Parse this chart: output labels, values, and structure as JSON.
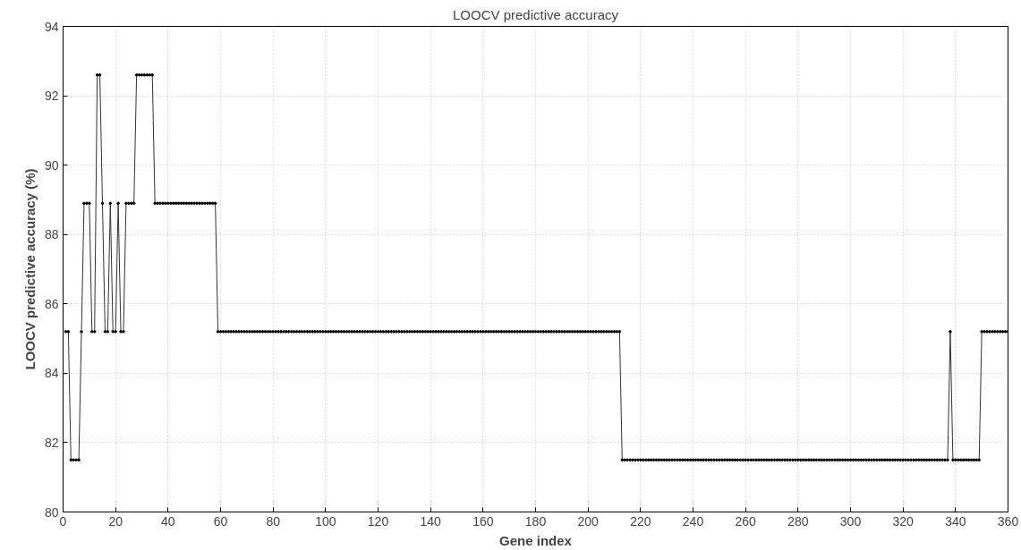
{
  "chart_data": {
    "type": "line",
    "title": "LOOCV predictive accuracy",
    "xlabel": "Gene index",
    "ylabel": "LOOCV predictive accuracy (%)",
    "xlim": [
      0,
      360
    ],
    "xticks": [
      0,
      20,
      40,
      60,
      80,
      100,
      120,
      140,
      160,
      180,
      200,
      220,
      240,
      260,
      280,
      300,
      320,
      340,
      360
    ],
    "ylim": [
      80,
      94
    ],
    "yticks": [
      80,
      82,
      84,
      86,
      88,
      90,
      92,
      94
    ],
    "grid": true,
    "marker": "circle",
    "line_style": "solid",
    "x": [
      1,
      2,
      3,
      4,
      5,
      6,
      7,
      8,
      9,
      10,
      11,
      12,
      13,
      14,
      15,
      16,
      17,
      18,
      19,
      20,
      21,
      22,
      23,
      24,
      25,
      26,
      27,
      28,
      29,
      30,
      31,
      32,
      33,
      34,
      35,
      36,
      37,
      38,
      39,
      40,
      41,
      42,
      43,
      44,
      45,
      46,
      47,
      48,
      49,
      50,
      51,
      52,
      53,
      54,
      55,
      56,
      57,
      58,
      59,
      60,
      61,
      62,
      63,
      64,
      65,
      66,
      67,
      68,
      69,
      70,
      71,
      72,
      73,
      74,
      75,
      76,
      77,
      78,
      79,
      80,
      81,
      82,
      83,
      84,
      85,
      86,
      87,
      88,
      89,
      90,
      91,
      92,
      93,
      94,
      95,
      96,
      97,
      98,
      99,
      100,
      101,
      102,
      103,
      104,
      105,
      106,
      107,
      108,
      109,
      110,
      111,
      112,
      113,
      114,
      115,
      116,
      117,
      118,
      119,
      120,
      121,
      122,
      123,
      124,
      125,
      126,
      127,
      128,
      129,
      130,
      131,
      132,
      133,
      134,
      135,
      136,
      137,
      138,
      139,
      140,
      141,
      142,
      143,
      144,
      145,
      146,
      147,
      148,
      149,
      150,
      151,
      152,
      153,
      154,
      155,
      156,
      157,
      158,
      159,
      160,
      161,
      162,
      163,
      164,
      165,
      166,
      167,
      168,
      169,
      170,
      171,
      172,
      173,
      174,
      175,
      176,
      177,
      178,
      179,
      180,
      181,
      182,
      183,
      184,
      185,
      186,
      187,
      188,
      189,
      190,
      191,
      192,
      193,
      194,
      195,
      196,
      197,
      198,
      199,
      200,
      201,
      202,
      203,
      204,
      205,
      206,
      207,
      208,
      209,
      210,
      211,
      212,
      213,
      214,
      215,
      216,
      217,
      218,
      219,
      220,
      221,
      222,
      223,
      224,
      225,
      226,
      227,
      228,
      229,
      230,
      231,
      232,
      233,
      234,
      235,
      236,
      237,
      238,
      239,
      240,
      241,
      242,
      243,
      244,
      245,
      246,
      247,
      248,
      249,
      250,
      251,
      252,
      253,
      254,
      255,
      256,
      257,
      258,
      259,
      260,
      261,
      262,
      263,
      264,
      265,
      266,
      267,
      268,
      269,
      270,
      271,
      272,
      273,
      274,
      275,
      276,
      277,
      278,
      279,
      280,
      281,
      282,
      283,
      284,
      285,
      286,
      287,
      288,
      289,
      290,
      291,
      292,
      293,
      294,
      295,
      296,
      297,
      298,
      299,
      300,
      301,
      302,
      303,
      304,
      305,
      306,
      307,
      308,
      309,
      310,
      311,
      312,
      313,
      314,
      315,
      316,
      317,
      318,
      319,
      320,
      321,
      322,
      323,
      324,
      325,
      326,
      327,
      328,
      329,
      330,
      331,
      332,
      333,
      334,
      335,
      336,
      337,
      338,
      339,
      340,
      341,
      342,
      343,
      344,
      345,
      346,
      347,
      348,
      349,
      350,
      351,
      352,
      353,
      354,
      355,
      356,
      357,
      358,
      359,
      360
    ],
    "series": [
      {
        "color": "#333333",
        "values": [
          85.2,
          85.2,
          81.5,
          81.5,
          81.5,
          81.5,
          85.2,
          88.9,
          88.9,
          88.9,
          85.2,
          85.2,
          92.6,
          92.6,
          88.9,
          85.2,
          85.2,
          88.9,
          85.2,
          85.2,
          88.9,
          85.2,
          85.2,
          88.9,
          88.9,
          88.9,
          88.9,
          92.6,
          92.6,
          92.6,
          92.6,
          92.6,
          92.6,
          92.6,
          88.9,
          88.9,
          88.9,
          88.9,
          88.9,
          88.9,
          88.9,
          88.9,
          88.9,
          88.9,
          88.9,
          88.9,
          88.9,
          88.9,
          88.9,
          88.9,
          88.9,
          88.9,
          88.9,
          88.9,
          88.9,
          88.9,
          88.9,
          88.9,
          85.2,
          85.2,
          85.2,
          85.2,
          85.2,
          85.2,
          85.2,
          85.2,
          85.2,
          85.2,
          85.2,
          85.2,
          85.2,
          85.2,
          85.2,
          85.2,
          85.2,
          85.2,
          85.2,
          85.2,
          85.2,
          85.2,
          85.2,
          85.2,
          85.2,
          85.2,
          85.2,
          85.2,
          85.2,
          85.2,
          85.2,
          85.2,
          85.2,
          85.2,
          85.2,
          85.2,
          85.2,
          85.2,
          85.2,
          85.2,
          85.2,
          85.2,
          85.2,
          85.2,
          85.2,
          85.2,
          85.2,
          85.2,
          85.2,
          85.2,
          85.2,
          85.2,
          85.2,
          85.2,
          85.2,
          85.2,
          85.2,
          85.2,
          85.2,
          85.2,
          85.2,
          85.2,
          85.2,
          85.2,
          85.2,
          85.2,
          85.2,
          85.2,
          85.2,
          85.2,
          85.2,
          85.2,
          85.2,
          85.2,
          85.2,
          85.2,
          85.2,
          85.2,
          85.2,
          85.2,
          85.2,
          85.2,
          85.2,
          85.2,
          85.2,
          85.2,
          85.2,
          85.2,
          85.2,
          85.2,
          85.2,
          85.2,
          85.2,
          85.2,
          85.2,
          85.2,
          85.2,
          85.2,
          85.2,
          85.2,
          85.2,
          85.2,
          85.2,
          85.2,
          85.2,
          85.2,
          85.2,
          85.2,
          85.2,
          85.2,
          85.2,
          85.2,
          85.2,
          85.2,
          85.2,
          85.2,
          85.2,
          85.2,
          85.2,
          85.2,
          85.2,
          85.2,
          85.2,
          85.2,
          85.2,
          85.2,
          85.2,
          85.2,
          85.2,
          85.2,
          85.2,
          85.2,
          85.2,
          85.2,
          85.2,
          85.2,
          85.2,
          85.2,
          85.2,
          85.2,
          85.2,
          85.2,
          85.2,
          85.2,
          85.2,
          85.2,
          85.2,
          85.2,
          85.2,
          85.2,
          85.2,
          85.2,
          85.2,
          85.2,
          81.5,
          81.5,
          81.5,
          81.5,
          81.5,
          81.5,
          81.5,
          81.5,
          81.5,
          81.5,
          81.5,
          81.5,
          81.5,
          81.5,
          81.5,
          81.5,
          81.5,
          81.5,
          81.5,
          81.5,
          81.5,
          81.5,
          81.5,
          81.5,
          81.5,
          81.5,
          81.5,
          81.5,
          81.5,
          81.5,
          81.5,
          81.5,
          81.5,
          81.5,
          81.5,
          81.5,
          81.5,
          81.5,
          81.5,
          81.5,
          81.5,
          81.5,
          81.5,
          81.5,
          81.5,
          81.5,
          81.5,
          81.5,
          81.5,
          81.5,
          81.5,
          81.5,
          81.5,
          81.5,
          81.5,
          81.5,
          81.5,
          81.5,
          81.5,
          81.5,
          81.5,
          81.5,
          81.5,
          81.5,
          81.5,
          81.5,
          81.5,
          81.5,
          81.5,
          81.5,
          81.5,
          81.5,
          81.5,
          81.5,
          81.5,
          81.5,
          81.5,
          81.5,
          81.5,
          81.5,
          81.5,
          81.5,
          81.5,
          81.5,
          81.5,
          81.5,
          81.5,
          81.5,
          81.5,
          81.5,
          81.5,
          81.5,
          81.5,
          81.5,
          81.5,
          81.5,
          81.5,
          81.5,
          81.5,
          81.5,
          81.5,
          81.5,
          81.5,
          81.5,
          81.5,
          81.5,
          81.5,
          81.5,
          81.5,
          81.5,
          81.5,
          81.5,
          81.5,
          81.5,
          81.5,
          81.5,
          81.5,
          81.5,
          81.5,
          81.5,
          81.5,
          81.5,
          81.5,
          81.5,
          81.5,
          85.2,
          81.5,
          81.5,
          81.5,
          81.5,
          81.5,
          81.5,
          81.5,
          81.5,
          81.5,
          81.5,
          81.5,
          85.2,
          85.2,
          85.2,
          85.2,
          85.2,
          85.2,
          85.2,
          85.2,
          85.2,
          85.2,
          85.2
        ]
      }
    ]
  }
}
